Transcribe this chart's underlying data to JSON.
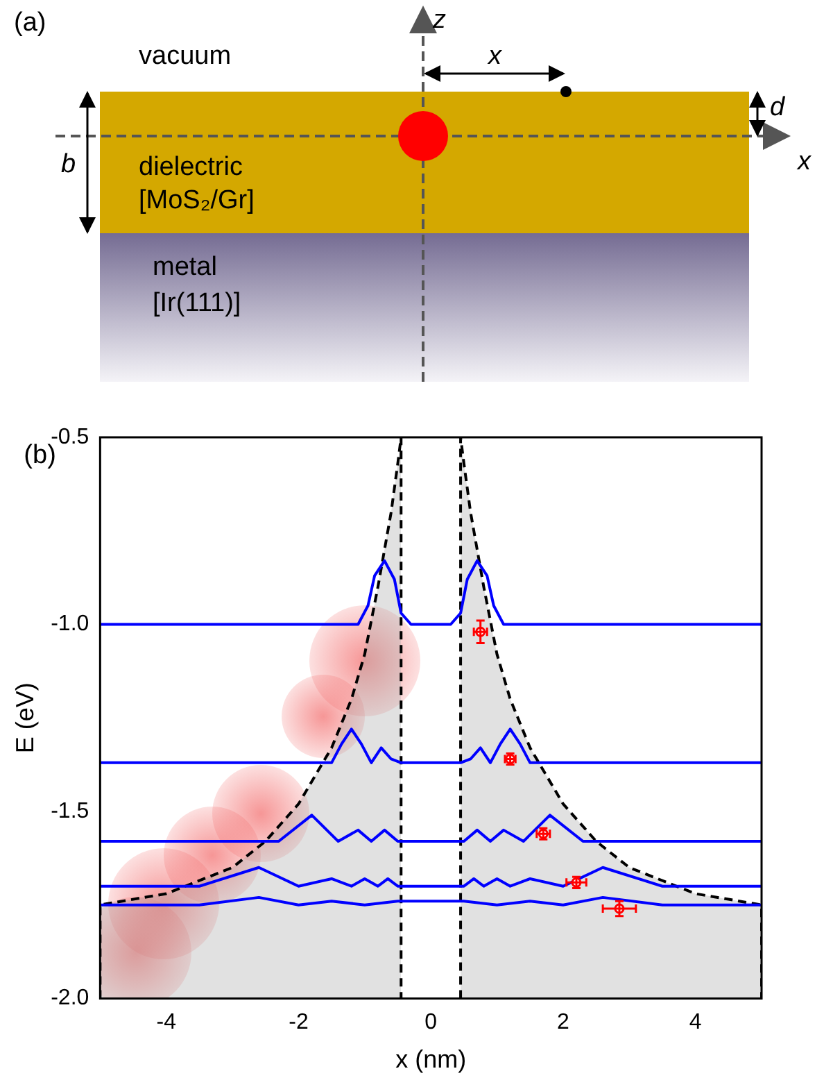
{
  "chart_data": [
    {
      "type": "other",
      "annotations": [
        "(a)",
        "vacuum",
        "dielectric",
        "[MoS₂/Gr]",
        "metal",
        "[Ir(111)]",
        "z",
        "x",
        "x",
        "d",
        "b"
      ]
    },
    {
      "type": "line",
      "xlabel": "x (nm)",
      "ylabel": "E (eV)",
      "xlim": [
        -5,
        5
      ],
      "ylim": [
        -2,
        -0.5
      ],
      "xticks": [
        -4,
        -2,
        0,
        2,
        4
      ],
      "yticks": [
        {
          "value": -2,
          "label": "-2.0"
        },
        {
          "value": -1.5,
          "label": "-1.5"
        },
        {
          "value": -1,
          "label": "-1.0"
        },
        {
          "value": -0.5,
          "label": "-0.5"
        }
      ],
      "annotations": [
        "(b)"
      ],
      "series": [
        {
          "type": "area",
          "color": "#000000",
          "line_style": "dashed",
          "x": [
            -5,
            -5,
            -4,
            -3,
            -2.5,
            -2,
            -1.5,
            -1.2,
            -1,
            -0.8,
            -0.6,
            -0.5,
            -0.45,
            -0.45
          ],
          "values": [
            -2,
            -1.75,
            -1.72,
            -1.65,
            -1.58,
            -1.48,
            -1.33,
            -1.2,
            -1.08,
            -0.9,
            -0.7,
            -0.57,
            -0.5,
            -2
          ]
        },
        {
          "type": "area",
          "color": "#000000",
          "line_style": "dashed",
          "x": [
            0.45,
            0.45,
            0.5,
            0.6,
            0.8,
            1,
            1.2,
            1.5,
            2,
            2.5,
            3,
            4,
            5,
            5
          ],
          "values": [
            -2,
            -0.5,
            -0.57,
            -0.7,
            -0.9,
            -1.08,
            -1.2,
            -1.33,
            -1.48,
            -1.58,
            -1.65,
            -1.72,
            -1.75,
            -2
          ]
        },
        {
          "type": "line",
          "color": "#0000ff",
          "x": [
            -5,
            -1.1,
            -0.95,
            -0.85,
            -0.7,
            -0.55,
            -0.45,
            -0.3,
            0.3,
            0.45,
            0.55,
            0.7,
            0.85,
            0.95,
            1.1,
            5
          ],
          "values": [
            -1,
            -1,
            -0.95,
            -0.87,
            -0.83,
            -0.88,
            -0.97,
            -1,
            -1,
            -0.97,
            -0.88,
            -0.83,
            -0.87,
            -0.95,
            -1,
            -1
          ]
        },
        {
          "type": "line",
          "color": "#0000ff",
          "x": [
            -5,
            -1.5,
            -1.35,
            -1.2,
            -1.05,
            -0.9,
            -0.75,
            -0.6,
            -0.45,
            0.45,
            0.6,
            0.75,
            0.9,
            1.05,
            1.2,
            1.35,
            1.5,
            5
          ],
          "values": [
            -1.37,
            -1.37,
            -1.32,
            -1.28,
            -1.32,
            -1.37,
            -1.33,
            -1.36,
            -1.37,
            -1.37,
            -1.36,
            -1.33,
            -1.37,
            -1.32,
            -1.28,
            -1.32,
            -1.37,
            -1.37
          ]
        },
        {
          "type": "line",
          "color": "#0000ff",
          "x": [
            -5,
            -2.3,
            -1.8,
            -1.4,
            -1.1,
            -0.9,
            -0.7,
            -0.5,
            0.5,
            0.7,
            0.9,
            1.1,
            1.4,
            1.8,
            2.3,
            5
          ],
          "values": [
            -1.58,
            -1.58,
            -1.51,
            -1.58,
            -1.55,
            -1.58,
            -1.55,
            -1.58,
            -1.58,
            -1.55,
            -1.58,
            -1.55,
            -1.58,
            -1.51,
            -1.58,
            -1.58
          ]
        },
        {
          "type": "line",
          "color": "#0000ff",
          "x": [
            -5,
            -3.5,
            -2.6,
            -2,
            -1.5,
            -1.2,
            -1,
            -0.8,
            -0.65,
            -0.5,
            0.5,
            0.65,
            0.8,
            1,
            1.2,
            1.5,
            2,
            2.6,
            3.5,
            5
          ],
          "values": [
            -1.7,
            -1.7,
            -1.65,
            -1.7,
            -1.68,
            -1.7,
            -1.68,
            -1.7,
            -1.68,
            -1.7,
            -1.7,
            -1.68,
            -1.7,
            -1.68,
            -1.7,
            -1.68,
            -1.7,
            -1.65,
            -1.7,
            -1.7
          ]
        },
        {
          "type": "line",
          "color": "#0000ff",
          "x": [
            -5,
            -3.5,
            -2.6,
            -2,
            -1.5,
            -1,
            -0.5,
            0.5,
            1,
            1.5,
            2,
            2.6,
            3.5,
            5
          ],
          "values": [
            -1.75,
            -1.75,
            -1.73,
            -1.75,
            -1.74,
            -1.75,
            -1.74,
            -1.74,
            -1.75,
            -1.74,
            -1.75,
            -1.73,
            -1.75,
            -1.75
          ]
        },
        {
          "type": "scatter",
          "color": "#ff0000",
          "marker": "circle",
          "x": [
            0.75,
            1.2,
            1.7,
            2.2,
            2.85
          ],
          "values": [
            -1.02,
            -1.36,
            -1.56,
            -1.69,
            -1.76
          ],
          "errors": [
            0.03,
            0.015,
            0.015,
            0.015,
            0.02
          ],
          "xerrors": [
            0.1,
            0.08,
            0.1,
            0.15,
            0.25
          ]
        }
      ]
    }
  ]
}
